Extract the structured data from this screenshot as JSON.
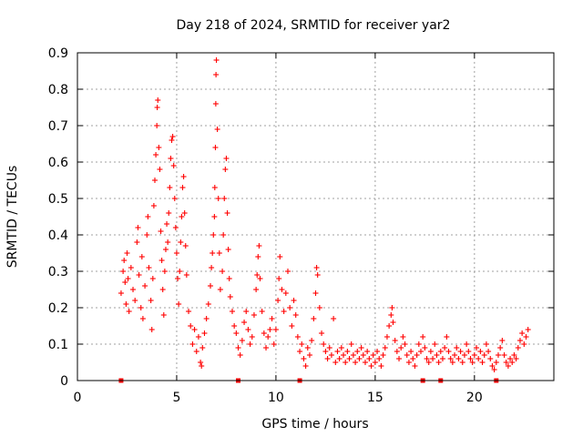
{
  "chart_data": {
    "type": "scatter",
    "title": "Day 218 of 2024, SRMTID for receiver yar2",
    "xlabel": "GPS time / hours",
    "ylabel": "SRMTID / TECUs",
    "xlim": [
      0,
      24
    ],
    "ylim": [
      0,
      0.9
    ],
    "xticks": [
      0,
      5,
      10,
      15,
      20
    ],
    "yticks": [
      0,
      0.1,
      0.2,
      0.3,
      0.4,
      0.5,
      0.6,
      0.7,
      0.8,
      0.9
    ],
    "xtick_labels": [
      "0",
      "5",
      "10",
      "15",
      "20"
    ],
    "ytick_labels": [
      "0",
      "0.1",
      "0.2",
      "0.3",
      "0.4",
      "0.5",
      "0.6",
      "0.7",
      "0.8",
      "0.9"
    ],
    "grid": true,
    "marker": "plus",
    "color": "#ff0000",
    "series": [
      {
        "name": "SRMTID",
        "points": [
          [
            2.2,
            0.24
          ],
          [
            2.3,
            0.3
          ],
          [
            2.35,
            0.33
          ],
          [
            2.4,
            0.27
          ],
          [
            2.45,
            0.21
          ],
          [
            2.5,
            0.35
          ],
          [
            2.55,
            0.28
          ],
          [
            2.6,
            0.19
          ],
          [
            2.7,
            0.31
          ],
          [
            2.8,
            0.25
          ],
          [
            2.9,
            0.22
          ],
          [
            3.0,
            0.38
          ],
          [
            3.05,
            0.42
          ],
          [
            3.1,
            0.29
          ],
          [
            3.2,
            0.2
          ],
          [
            3.25,
            0.34
          ],
          [
            3.3,
            0.17
          ],
          [
            3.4,
            0.26
          ],
          [
            3.5,
            0.4
          ],
          [
            3.55,
            0.45
          ],
          [
            3.6,
            0.31
          ],
          [
            3.7,
            0.22
          ],
          [
            3.75,
            0.14
          ],
          [
            3.8,
            0.28
          ],
          [
            3.85,
            0.48
          ],
          [
            3.9,
            0.55
          ],
          [
            3.95,
            0.62
          ],
          [
            4.0,
            0.7
          ],
          [
            4.02,
            0.75
          ],
          [
            4.05,
            0.77
          ],
          [
            4.1,
            0.64
          ],
          [
            4.15,
            0.58
          ],
          [
            4.2,
            0.41
          ],
          [
            4.25,
            0.33
          ],
          [
            4.3,
            0.25
          ],
          [
            4.35,
            0.18
          ],
          [
            4.4,
            0.3
          ],
          [
            4.45,
            0.36
          ],
          [
            4.5,
            0.43
          ],
          [
            4.55,
            0.38
          ],
          [
            4.6,
            0.46
          ],
          [
            4.65,
            0.53
          ],
          [
            4.7,
            0.61
          ],
          [
            4.75,
            0.66
          ],
          [
            4.8,
            0.67
          ],
          [
            4.85,
            0.59
          ],
          [
            4.9,
            0.5
          ],
          [
            4.95,
            0.42
          ],
          [
            5.0,
            0.35
          ],
          [
            5.05,
            0.28
          ],
          [
            5.1,
            0.21
          ],
          [
            5.15,
            0.3
          ],
          [
            5.2,
            0.38
          ],
          [
            5.25,
            0.45
          ],
          [
            5.3,
            0.53
          ],
          [
            5.35,
            0.56
          ],
          [
            5.4,
            0.46
          ],
          [
            5.45,
            0.37
          ],
          [
            5.5,
            0.29
          ],
          [
            5.6,
            0.19
          ],
          [
            5.7,
            0.15
          ],
          [
            5.8,
            0.1
          ],
          [
            5.9,
            0.14
          ],
          [
            6.0,
            0.08
          ],
          [
            6.1,
            0.12
          ],
          [
            6.2,
            0.05
          ],
          [
            6.25,
            0.04
          ],
          [
            6.3,
            0.09
          ],
          [
            6.4,
            0.13
          ],
          [
            6.5,
            0.17
          ],
          [
            6.6,
            0.21
          ],
          [
            6.7,
            0.26
          ],
          [
            6.75,
            0.31
          ],
          [
            6.8,
            0.35
          ],
          [
            6.85,
            0.4
          ],
          [
            6.9,
            0.45
          ],
          [
            6.92,
            0.53
          ],
          [
            6.95,
            0.64
          ],
          [
            6.97,
            0.76
          ],
          [
            6.98,
            0.84
          ],
          [
            7.0,
            0.88
          ],
          [
            7.05,
            0.69
          ],
          [
            7.1,
            0.5
          ],
          [
            7.15,
            0.35
          ],
          [
            7.2,
            0.25
          ],
          [
            7.3,
            0.3
          ],
          [
            7.35,
            0.4
          ],
          [
            7.4,
            0.5
          ],
          [
            7.45,
            0.58
          ],
          [
            7.5,
            0.61
          ],
          [
            7.55,
            0.46
          ],
          [
            7.6,
            0.36
          ],
          [
            7.65,
            0.28
          ],
          [
            7.7,
            0.23
          ],
          [
            7.8,
            0.19
          ],
          [
            7.9,
            0.15
          ],
          [
            8.0,
            0.13
          ],
          [
            8.1,
            0.09
          ],
          [
            8.2,
            0.07
          ],
          [
            8.3,
            0.11
          ],
          [
            8.4,
            0.16
          ],
          [
            8.5,
            0.19
          ],
          [
            8.6,
            0.14
          ],
          [
            8.7,
            0.1
          ],
          [
            8.8,
            0.12
          ],
          [
            8.9,
            0.18
          ],
          [
            9.0,
            0.25
          ],
          [
            9.05,
            0.29
          ],
          [
            9.1,
            0.34
          ],
          [
            9.15,
            0.37
          ],
          [
            9.2,
            0.28
          ],
          [
            9.3,
            0.19
          ],
          [
            9.4,
            0.13
          ],
          [
            9.5,
            0.09
          ],
          [
            9.6,
            0.12
          ],
          [
            9.7,
            0.14
          ],
          [
            9.8,
            0.17
          ],
          [
            9.9,
            0.1
          ],
          [
            10.0,
            0.14
          ],
          [
            10.1,
            0.22
          ],
          [
            10.15,
            0.28
          ],
          [
            10.2,
            0.34
          ],
          [
            10.3,
            0.25
          ],
          [
            10.4,
            0.19
          ],
          [
            10.5,
            0.24
          ],
          [
            10.6,
            0.3
          ],
          [
            10.7,
            0.2
          ],
          [
            10.8,
            0.15
          ],
          [
            10.9,
            0.22
          ],
          [
            11.0,
            0.18
          ],
          [
            11.1,
            0.12
          ],
          [
            11.2,
            0.08
          ],
          [
            11.3,
            0.1
          ],
          [
            11.4,
            0.06
          ],
          [
            11.5,
            0.04
          ],
          [
            11.6,
            0.09
          ],
          [
            11.7,
            0.07
          ],
          [
            11.8,
            0.11
          ],
          [
            11.9,
            0.17
          ],
          [
            12.0,
            0.24
          ],
          [
            12.05,
            0.31
          ],
          [
            12.1,
            0.29
          ],
          [
            12.2,
            0.2
          ],
          [
            12.3,
            0.13
          ],
          [
            12.4,
            0.1
          ],
          [
            12.5,
            0.08
          ],
          [
            12.6,
            0.06
          ],
          [
            12.7,
            0.09
          ],
          [
            12.8,
            0.07
          ],
          [
            12.9,
            0.17
          ],
          [
            13.0,
            0.05
          ],
          [
            13.1,
            0.08
          ],
          [
            13.2,
            0.06
          ],
          [
            13.3,
            0.09
          ],
          [
            13.4,
            0.07
          ],
          [
            13.5,
            0.05
          ],
          [
            13.6,
            0.08
          ],
          [
            13.7,
            0.06
          ],
          [
            13.8,
            0.1
          ],
          [
            13.9,
            0.07
          ],
          [
            14.0,
            0.05
          ],
          [
            14.1,
            0.08
          ],
          [
            14.2,
            0.06
          ],
          [
            14.3,
            0.09
          ],
          [
            14.4,
            0.07
          ],
          [
            14.5,
            0.05
          ],
          [
            14.6,
            0.08
          ],
          [
            14.7,
            0.06
          ],
          [
            14.8,
            0.04
          ],
          [
            14.9,
            0.07
          ],
          [
            15.0,
            0.05
          ],
          [
            15.1,
            0.08
          ],
          [
            15.2,
            0.06
          ],
          [
            15.3,
            0.04
          ],
          [
            15.4,
            0.07
          ],
          [
            15.5,
            0.09
          ],
          [
            15.6,
            0.12
          ],
          [
            15.7,
            0.15
          ],
          [
            15.8,
            0.18
          ],
          [
            15.85,
            0.2
          ],
          [
            15.9,
            0.16
          ],
          [
            16.0,
            0.11
          ],
          [
            16.1,
            0.08
          ],
          [
            16.2,
            0.06
          ],
          [
            16.3,
            0.09
          ],
          [
            16.4,
            0.12
          ],
          [
            16.5,
            0.1
          ],
          [
            16.6,
            0.07
          ],
          [
            16.7,
            0.05
          ],
          [
            16.8,
            0.08
          ],
          [
            16.9,
            0.06
          ],
          [
            17.0,
            0.04
          ],
          [
            17.1,
            0.07
          ],
          [
            17.2,
            0.1
          ],
          [
            17.3,
            0.08
          ],
          [
            17.4,
            0.12
          ],
          [
            17.5,
            0.09
          ],
          [
            17.6,
            0.06
          ],
          [
            17.7,
            0.05
          ],
          [
            17.8,
            0.08
          ],
          [
            17.9,
            0.06
          ],
          [
            18.0,
            0.1
          ],
          [
            18.1,
            0.07
          ],
          [
            18.2,
            0.05
          ],
          [
            18.3,
            0.08
          ],
          [
            18.4,
            0.06
          ],
          [
            18.5,
            0.09
          ],
          [
            18.6,
            0.12
          ],
          [
            18.7,
            0.08
          ],
          [
            18.8,
            0.06
          ],
          [
            18.9,
            0.05
          ],
          [
            19.0,
            0.07
          ],
          [
            19.1,
            0.09
          ],
          [
            19.2,
            0.06
          ],
          [
            19.3,
            0.08
          ],
          [
            19.4,
            0.05
          ],
          [
            19.5,
            0.07
          ],
          [
            19.6,
            0.1
          ],
          [
            19.7,
            0.08
          ],
          [
            19.8,
            0.06
          ],
          [
            19.9,
            0.05
          ],
          [
            20.0,
            0.07
          ],
          [
            20.1,
            0.09
          ],
          [
            20.2,
            0.06
          ],
          [
            20.3,
            0.08
          ],
          [
            20.4,
            0.05
          ],
          [
            20.5,
            0.07
          ],
          [
            20.6,
            0.1
          ],
          [
            20.7,
            0.08
          ],
          [
            20.8,
            0.06
          ],
          [
            20.9,
            0.04
          ],
          [
            21.0,
            0.03
          ],
          [
            21.1,
            0.05
          ],
          [
            21.2,
            0.07
          ],
          [
            21.3,
            0.09
          ],
          [
            21.4,
            0.11
          ],
          [
            21.5,
            0.07
          ],
          [
            21.6,
            0.05
          ],
          [
            21.7,
            0.04
          ],
          [
            21.8,
            0.06
          ],
          [
            21.9,
            0.05
          ],
          [
            22.0,
            0.07
          ],
          [
            22.1,
            0.06
          ],
          [
            22.2,
            0.09
          ],
          [
            22.3,
            0.11
          ],
          [
            22.4,
            0.13
          ],
          [
            22.5,
            0.1
          ],
          [
            22.6,
            0.12
          ],
          [
            22.7,
            0.14
          ]
        ]
      }
    ],
    "zero_markers_x": [
      2.2,
      8.1,
      11.2,
      17.4,
      18.3,
      21.1
    ]
  }
}
